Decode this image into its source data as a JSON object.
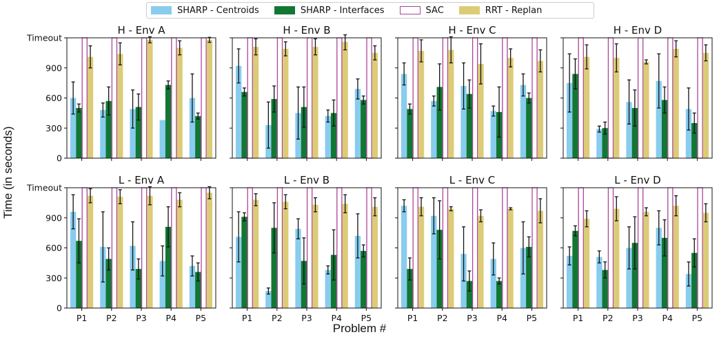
{
  "legend": [
    {
      "name": "SHARP - Centroids",
      "color": "#88CCEE",
      "style": "fill"
    },
    {
      "name": "SHARP - Interfaces",
      "color": "#117733",
      "style": "fill"
    },
    {
      "name": "SAC",
      "color": "#AA4499",
      "style": "outline"
    },
    {
      "name": "RRT - Replan",
      "color": "#DDCC77",
      "style": "fill"
    }
  ],
  "ylabel": "Time (in seconds)",
  "xlabel": "Problem #",
  "chart_data": [
    {
      "type": "bar",
      "title": "H - Env A",
      "categories": [
        "P1",
        "P2",
        "P3",
        "P4",
        "P5"
      ],
      "yticks": [
        0,
        300,
        600,
        900,
        "Timeout"
      ],
      "ylim": [
        0,
        1200
      ],
      "series": [
        {
          "name": "SHARP - Centroids",
          "values": [
            600,
            480,
            490,
            380,
            600
          ],
          "err": [
            160,
            70,
            190,
            0,
            240
          ]
        },
        {
          "name": "SHARP - Interfaces",
          "values": [
            500,
            570,
            510,
            730,
            420
          ],
          "err": [
            40,
            140,
            130,
            40,
            30
          ]
        },
        {
          "name": "SAC",
          "values": [
            1200,
            1200,
            1200,
            1200,
            1200
          ],
          "err": [
            0,
            0,
            0,
            0,
            0
          ]
        },
        {
          "name": "RRT - Replan",
          "values": [
            1010,
            1040,
            1180,
            1100,
            1180
          ],
          "err": [
            110,
            110,
            30,
            70,
            25
          ]
        }
      ]
    },
    {
      "type": "bar",
      "title": "H - Env B",
      "categories": [
        "P1",
        "P2",
        "P3",
        "P4",
        "P5"
      ],
      "yticks": [
        0,
        300,
        600,
        900,
        "Timeout"
      ],
      "ylim": [
        0,
        1200
      ],
      "series": [
        {
          "name": "SHARP - Centroids",
          "values": [
            920,
            330,
            450,
            420,
            690
          ],
          "err": [
            170,
            230,
            260,
            60,
            100
          ]
        },
        {
          "name": "SHARP - Interfaces",
          "values": [
            660,
            590,
            510,
            450,
            580
          ],
          "err": [
            40,
            130,
            200,
            130,
            40
          ]
        },
        {
          "name": "SAC",
          "values": [
            1200,
            1200,
            1200,
            1200,
            1200
          ],
          "err": [
            0,
            0,
            0,
            0,
            0
          ]
        },
        {
          "name": "RRT - Replan",
          "values": [
            1110,
            1090,
            1110,
            1160,
            1050
          ],
          "err": [
            80,
            70,
            80,
            80,
            70
          ]
        }
      ]
    },
    {
      "type": "bar",
      "title": "H - Env C",
      "categories": [
        "P1",
        "P2",
        "P3",
        "P4",
        "P5"
      ],
      "yticks": [
        0,
        300,
        600,
        900,
        "Timeout"
      ],
      "ylim": [
        0,
        1200
      ],
      "series": [
        {
          "name": "SHARP - Centroids",
          "values": [
            840,
            570,
            720,
            470,
            730
          ],
          "err": [
            110,
            50,
            230,
            50,
            110
          ]
        },
        {
          "name": "SHARP - Interfaces",
          "values": [
            490,
            710,
            640,
            460,
            600
          ],
          "err": [
            50,
            230,
            140,
            250,
            50
          ]
        },
        {
          "name": "SAC",
          "values": [
            1200,
            1200,
            1200,
            1200,
            1200
          ],
          "err": [
            0,
            0,
            0,
            0,
            0
          ]
        },
        {
          "name": "RRT - Replan",
          "values": [
            1070,
            1080,
            940,
            1000,
            970
          ],
          "err": [
            110,
            130,
            200,
            90,
            110
          ]
        }
      ]
    },
    {
      "type": "bar",
      "title": "H - Env D",
      "categories": [
        "P1",
        "P2",
        "P3",
        "P4",
        "P5"
      ],
      "yticks": [
        0,
        300,
        600,
        900,
        "Timeout"
      ],
      "ylim": [
        0,
        1200
      ],
      "series": [
        {
          "name": "SHARP - Centroids",
          "values": [
            750,
            290,
            560,
            770,
            490
          ],
          "err": [
            290,
            30,
            220,
            270,
            210
          ]
        },
        {
          "name": "SHARP - Interfaces",
          "values": [
            840,
            300,
            500,
            580,
            350
          ],
          "err": [
            150,
            60,
            180,
            130,
            100
          ]
        },
        {
          "name": "SAC",
          "values": [
            1200,
            1200,
            1200,
            1200,
            1200
          ],
          "err": [
            0,
            0,
            0,
            0,
            0
          ]
        },
        {
          "name": "RRT - Replan",
          "values": [
            1010,
            1000,
            960,
            1090,
            1050
          ],
          "err": [
            120,
            140,
            20,
            80,
            80
          ]
        }
      ]
    },
    {
      "type": "bar",
      "title": "L - Env A",
      "categories": [
        "P1",
        "P2",
        "P3",
        "P4",
        "P5"
      ],
      "yticks": [
        0,
        300,
        600,
        900,
        "Timeout"
      ],
      "ylim": [
        0,
        1200
      ],
      "series": [
        {
          "name": "SHARP - Centroids",
          "values": [
            960,
            610,
            620,
            470,
            420
          ],
          "err": [
            170,
            350,
            240,
            150,
            100
          ]
        },
        {
          "name": "SHARP - Interfaces",
          "values": [
            670,
            490,
            390,
            810,
            360
          ],
          "err": [
            220,
            110,
            100,
            200,
            90
          ]
        },
        {
          "name": "SAC",
          "values": [
            1200,
            1200,
            1200,
            1200,
            1200
          ],
          "err": [
            0,
            0,
            0,
            0,
            0
          ]
        },
        {
          "name": "RRT - Replan",
          "values": [
            1120,
            1110,
            1120,
            1080,
            1150
          ],
          "err": [
            70,
            70,
            90,
            70,
            60
          ]
        }
      ]
    },
    {
      "type": "bar",
      "title": "L - Env B",
      "categories": [
        "P1",
        "P2",
        "P3",
        "P4",
        "P5"
      ],
      "yticks": [
        0,
        300,
        600,
        900,
        "Timeout"
      ],
      "ylim": [
        0,
        1200
      ],
      "series": [
        {
          "name": "SHARP - Centroids",
          "values": [
            710,
            170,
            790,
            380,
            720
          ],
          "err": [
            250,
            30,
            100,
            40,
            220
          ]
        },
        {
          "name": "SHARP - Interfaces",
          "values": [
            910,
            800,
            470,
            530,
            570
          ],
          "err": [
            40,
            250,
            230,
            250,
            60
          ]
        },
        {
          "name": "SAC",
          "values": [
            1200,
            1200,
            1200,
            1200,
            1200
          ],
          "err": [
            0,
            0,
            0,
            0,
            0
          ]
        },
        {
          "name": "RRT - Replan",
          "values": [
            1080,
            1060,
            1030,
            1040,
            1010
          ],
          "err": [
            60,
            70,
            70,
            90,
            90
          ]
        }
      ]
    },
    {
      "type": "bar",
      "title": "L - Env C",
      "categories": [
        "P1",
        "P2",
        "P3",
        "P4",
        "P5"
      ],
      "yticks": [
        0,
        300,
        600,
        900,
        "Timeout"
      ],
      "ylim": [
        0,
        1200
      ],
      "series": [
        {
          "name": "SHARP - Centroids",
          "values": [
            1020,
            920,
            540,
            490,
            600
          ],
          "err": [
            60,
            180,
            270,
            160,
            260
          ]
        },
        {
          "name": "SHARP - Interfaces",
          "values": [
            390,
            780,
            270,
            270,
            610
          ],
          "err": [
            110,
            290,
            100,
            30,
            100
          ]
        },
        {
          "name": "SAC",
          "values": [
            1200,
            1200,
            1200,
            1200,
            1200
          ],
          "err": [
            0,
            0,
            0,
            0,
            0
          ]
        },
        {
          "name": "RRT - Replan",
          "values": [
            1010,
            990,
            920,
            990,
            970
          ],
          "err": [
            90,
            20,
            60,
            10,
            120
          ]
        }
      ]
    },
    {
      "type": "bar",
      "title": "L - Env D",
      "categories": [
        "P1",
        "P2",
        "P3",
        "P4",
        "P5"
      ],
      "yticks": [
        0,
        300,
        600,
        900,
        "Timeout"
      ],
      "ylim": [
        0,
        1200
      ],
      "series": [
        {
          "name": "SHARP - Centroids",
          "values": [
            520,
            510,
            600,
            800,
            340
          ],
          "err": [
            90,
            60,
            210,
            170,
            120
          ]
        },
        {
          "name": "SHARP - Interfaces",
          "values": [
            770,
            380,
            650,
            700,
            550
          ],
          "err": [
            50,
            80,
            260,
            180,
            140
          ]
        },
        {
          "name": "SAC",
          "values": [
            1200,
            1200,
            1200,
            1200,
            1200
          ],
          "err": [
            0,
            0,
            0,
            0,
            0
          ]
        },
        {
          "name": "RRT - Replan",
          "values": [
            890,
            990,
            960,
            1020,
            950
          ],
          "err": [
            80,
            120,
            40,
            100,
            90
          ]
        }
      ]
    }
  ]
}
